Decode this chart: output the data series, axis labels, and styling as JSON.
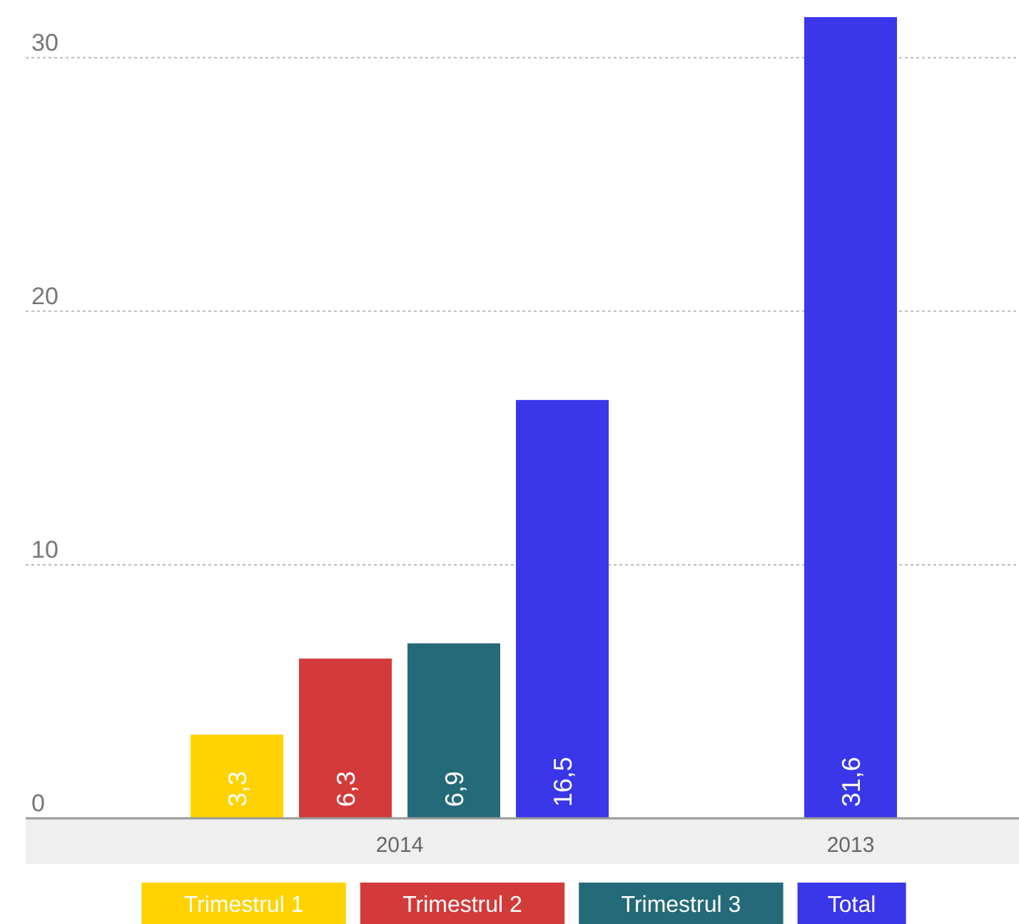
{
  "chart_data": {
    "type": "bar",
    "categories": [
      "2014",
      "2013"
    ],
    "series": [
      {
        "name": "Trimestrul 1",
        "color": "#ffd200",
        "values": [
          3.3,
          null
        ],
        "value_labels": [
          "3,3",
          null
        ]
      },
      {
        "name": "Trimestrul 2",
        "color": "#d33a3a",
        "values": [
          6.3,
          null
        ],
        "value_labels": [
          "6,3",
          null
        ]
      },
      {
        "name": "Trimestrul 3",
        "color": "#256a78",
        "values": [
          6.9,
          null
        ],
        "value_labels": [
          "6,9",
          null
        ]
      },
      {
        "name": "Total",
        "color": "#3a36ea",
        "values": [
          16.5,
          31.6
        ],
        "value_labels": [
          "16,5",
          "31,6"
        ]
      }
    ],
    "ylim": [
      0,
      31.6
    ],
    "yticks": [
      0,
      10,
      20,
      30
    ],
    "grid": "y",
    "legend": "bottom"
  }
}
